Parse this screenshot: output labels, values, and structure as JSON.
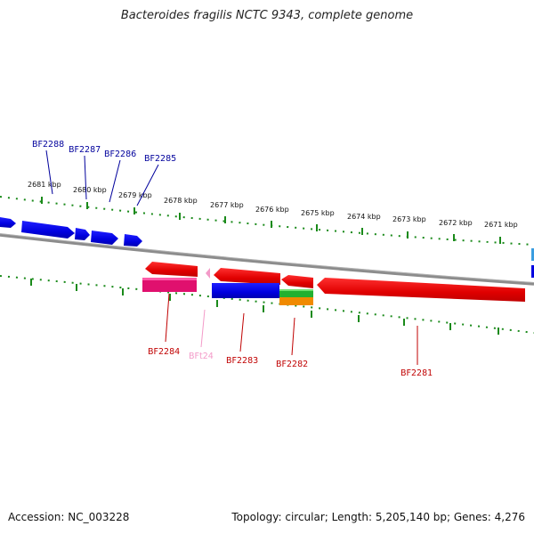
{
  "title": "Bacteroides fragilis NCTC 9343, complete genome",
  "footer": {
    "accession": "Accession: NC_003228",
    "summary": "Topology: circular; Length: 5,205,140 bp; Genes: 4,276"
  },
  "scale_labels": [
    "2681 kbp",
    "2680 kbp",
    "2679 kbp",
    "2678 kbp",
    "2677 kbp",
    "2676 kbp",
    "2675 kbp",
    "2674 kbp",
    "2673 kbp",
    "2672 kbp",
    "2671 kbp"
  ],
  "genes_top": [
    "BF2288",
    "BF2287",
    "BF2286",
    "BF2285"
  ],
  "genes_bottom": [
    "BF2284",
    "BFt24",
    "BF2283",
    "BF2282",
    "BF2281"
  ],
  "colors": {
    "forward": "#0000e0",
    "reverse": "#e00000",
    "top_label": "#00009c",
    "bottom_label": "#c00000",
    "trna": "#f39ac8",
    "tick": "#1a8a1a",
    "backbone": "#8c8c8c"
  }
}
